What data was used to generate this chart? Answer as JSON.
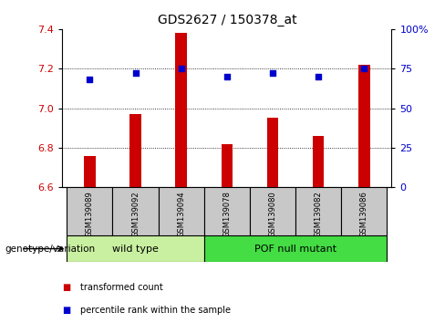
{
  "title": "GDS2627 / 150378_at",
  "samples": [
    "GSM139089",
    "GSM139092",
    "GSM139094",
    "GSM139078",
    "GSM139080",
    "GSM139082",
    "GSM139086"
  ],
  "bar_values": [
    6.76,
    6.97,
    7.38,
    6.82,
    6.95,
    6.86,
    7.22
  ],
  "bar_base": 6.6,
  "dot_percentiles": [
    68,
    72,
    75,
    70,
    72,
    70,
    75
  ],
  "ylim_left": [
    6.6,
    7.4
  ],
  "ylim_right": [
    0,
    100
  ],
  "yticks_left": [
    6.6,
    6.8,
    7.0,
    7.2,
    7.4
  ],
  "yticks_right": [
    0,
    25,
    50,
    75,
    100
  ],
  "ytick_labels_right": [
    "0",
    "25",
    "50",
    "75",
    "100%"
  ],
  "grid_values": [
    6.8,
    7.0,
    7.2
  ],
  "groups": [
    {
      "label": "wild type",
      "indices": [
        0,
        1,
        2
      ],
      "color": "#C8F0A0"
    },
    {
      "label": "POF null mutant",
      "indices": [
        3,
        4,
        5,
        6
      ],
      "color": "#44DD44"
    }
  ],
  "bar_color": "#CC0000",
  "dot_color": "#0000CC",
  "label_area_color": "#C8C8C8",
  "genotype_label": "genotype/variation",
  "legend_bar_label": "transformed count",
  "legend_dot_label": "percentile rank within the sample",
  "bar_width": 0.25
}
